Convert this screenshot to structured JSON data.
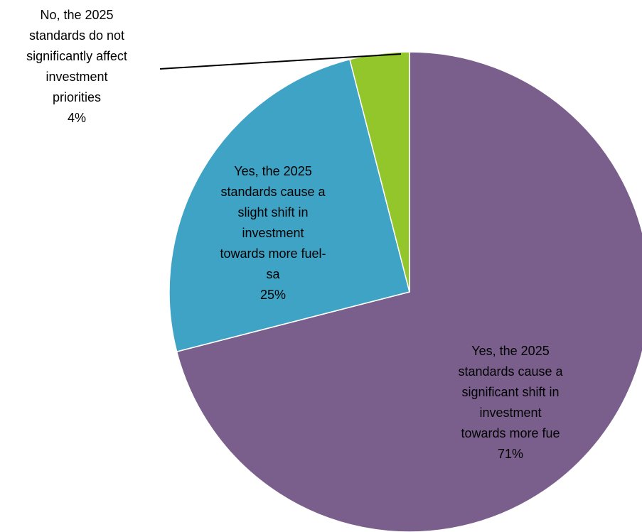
{
  "chart_data": {
    "type": "pie",
    "start_angle_deg": 0,
    "direction": "clockwise",
    "slices": [
      {
        "label_lines": [
          "Yes, the 2025",
          "standards cause a",
          "significant shift in",
          "investment",
          "towards more fue"
        ],
        "percent_label": "71%",
        "value": 71,
        "color": "#7a5f8c"
      },
      {
        "label_lines": [
          "Yes, the 2025",
          "standards  cause a",
          "slight shift in",
          "investment",
          "towards more fuel-",
          "sa"
        ],
        "percent_label": "25%",
        "value": 25,
        "color": "#3ea3c4"
      },
      {
        "label_lines": [
          "No, the 2025",
          "standards do not",
          "significantly affect",
          "investment",
          "priorities"
        ],
        "percent_label": "4%",
        "value": 4,
        "color": "#92c62a"
      }
    ]
  }
}
